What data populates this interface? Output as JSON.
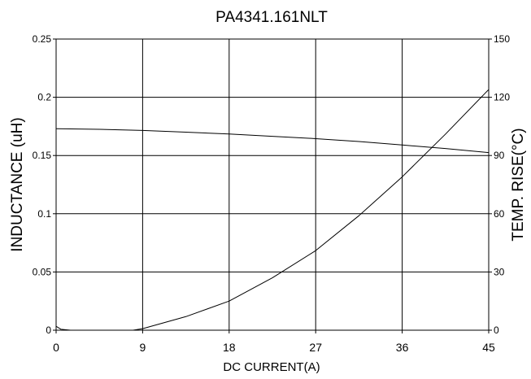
{
  "chart_data": {
    "type": "line",
    "title": "PA4341.161NLT",
    "xlabel": "DC CURRENT(A)",
    "ylabel": "INDUCTANCE (uH)",
    "y2label": "TEMP. RISE(°C)",
    "xlim": [
      0,
      45
    ],
    "ylim": [
      0,
      0.25
    ],
    "y2lim": [
      0,
      150
    ],
    "xticks": [
      "0",
      "9",
      "18",
      "27",
      "36",
      "45"
    ],
    "xtick_values": [
      0,
      9,
      18,
      27,
      36,
      45
    ],
    "yticks": [
      "0",
      "0.05",
      "0.1",
      "0.15",
      "0.2",
      "0.25"
    ],
    "ytick_values": [
      0,
      0.05,
      0.1,
      0.15,
      0.2,
      0.25
    ],
    "y2ticks": [
      "0",
      "30",
      "60",
      "90",
      "120",
      "150"
    ],
    "y2tick_values": [
      0,
      30,
      60,
      90,
      120,
      150
    ],
    "grid": true,
    "series": [
      {
        "axis": "left",
        "color": "#000000",
        "x": [
          0,
          4.5,
          9,
          13.5,
          18,
          22.5,
          27,
          31.5,
          36,
          40.5,
          45
        ],
        "y": [
          0.173,
          0.1725,
          0.1715,
          0.17,
          0.1685,
          0.1665,
          0.1645,
          0.162,
          0.159,
          0.156,
          0.1525
        ]
      },
      {
        "axis": "right",
        "color": "#000000",
        "x": [
          0,
          0.5,
          1.5,
          3,
          6,
          8,
          9,
          13.5,
          18,
          22.5,
          27,
          31.5,
          36,
          40.5,
          45
        ],
        "y": [
          2,
          0.5,
          0,
          0,
          0,
          0,
          0.8,
          7,
          15,
          27,
          41,
          59,
          79,
          101,
          124
        ]
      }
    ]
  }
}
